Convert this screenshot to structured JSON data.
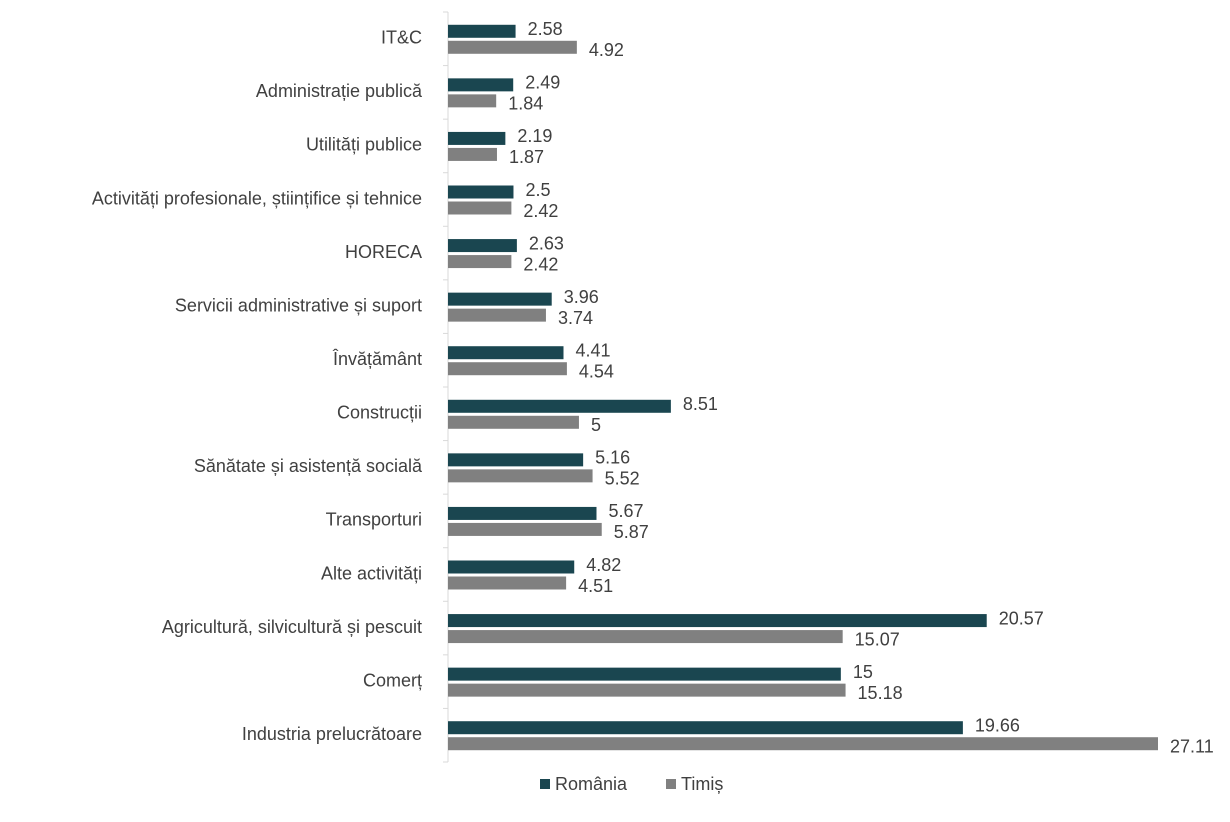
{
  "chart_data": {
    "type": "bar",
    "orientation": "horizontal",
    "categories": [
      "IT&C",
      "Administrație publică",
      "Utilități publice",
      "Activități profesionale, științifice și tehnice",
      "HORECA",
      "Servicii administrative și suport",
      "Învățământ",
      "Construcții",
      "Sănătate și asistență socială",
      "Transporturi",
      "Alte activități",
      "Agricultură, silvicultură și pescuit",
      "Comerț",
      "Industria prelucrătoare"
    ],
    "series": [
      {
        "name": "România",
        "color": "#1a4650",
        "values": [
          2.58,
          2.49,
          2.19,
          2.5,
          2.63,
          3.96,
          4.41,
          8.51,
          5.16,
          5.67,
          4.82,
          20.57,
          15,
          19.66
        ]
      },
      {
        "name": "Timiș",
        "color": "#808080",
        "values": [
          4.92,
          1.84,
          1.87,
          2.42,
          2.42,
          3.74,
          4.54,
          5,
          5.52,
          5.87,
          4.51,
          15.07,
          15.18,
          27.11
        ]
      }
    ],
    "legend": "bottom"
  }
}
